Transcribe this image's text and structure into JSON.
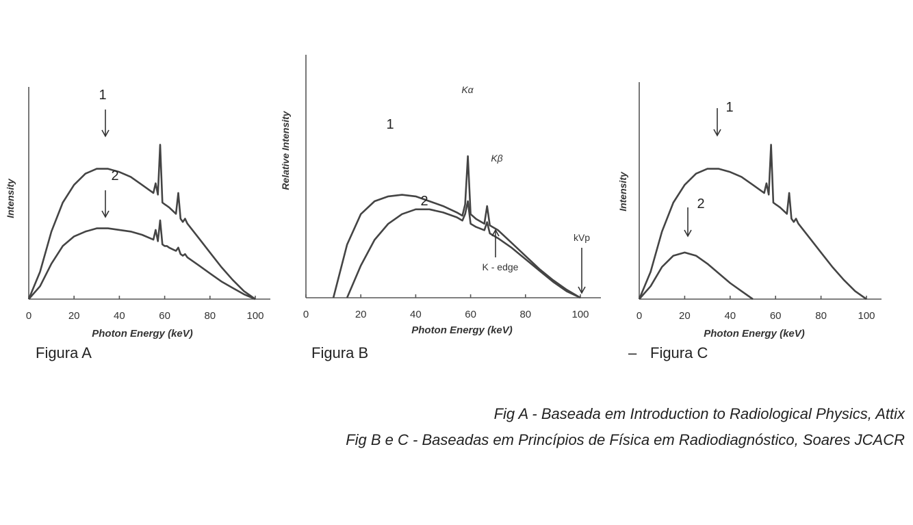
{
  "chart_data": [
    {
      "type": "line",
      "caption": "Figura A",
      "xlabel": "Photon Energy (keV)",
      "ylabel": "Intensity",
      "xticks": [
        0,
        20,
        40,
        60,
        80,
        100
      ],
      "xlim": [
        0,
        100
      ],
      "ylim": [
        0,
        1
      ],
      "series": [
        {
          "name": "1",
          "x": [
            0,
            5,
            10,
            15,
            20,
            25,
            30,
            35,
            40,
            45,
            50,
            55,
            56,
            57,
            58,
            59,
            60,
            61,
            62,
            65,
            66,
            67,
            68,
            69,
            70,
            75,
            80,
            85,
            90,
            95,
            100
          ],
          "y": [
            0,
            0.17,
            0.42,
            0.6,
            0.71,
            0.78,
            0.81,
            0.81,
            0.79,
            0.76,
            0.71,
            0.66,
            0.72,
            0.65,
            0.96,
            0.6,
            0.59,
            0.58,
            0.57,
            0.53,
            0.66,
            0.5,
            0.48,
            0.5,
            0.47,
            0.38,
            0.29,
            0.2,
            0.12,
            0.05,
            0
          ]
        },
        {
          "name": "2",
          "x": [
            0,
            5,
            10,
            15,
            20,
            25,
            30,
            35,
            40,
            45,
            50,
            55,
            56,
            57,
            58,
            59,
            60,
            61,
            62,
            65,
            66,
            67,
            68,
            69,
            70,
            75,
            80,
            85,
            90,
            95,
            100
          ],
          "y": [
            0,
            0.08,
            0.22,
            0.33,
            0.39,
            0.42,
            0.44,
            0.44,
            0.43,
            0.42,
            0.4,
            0.37,
            0.43,
            0.36,
            0.49,
            0.34,
            0.33,
            0.33,
            0.32,
            0.3,
            0.32,
            0.28,
            0.27,
            0.28,
            0.26,
            0.21,
            0.16,
            0.11,
            0.07,
            0.03,
            0
          ]
        }
      ]
    },
    {
      "type": "line",
      "caption": "Figura B",
      "xlabel": "Photon Energy (keV)",
      "ylabel": "Relative Intensity",
      "xticks": [
        0,
        20,
        40,
        60,
        80,
        100
      ],
      "xlim": [
        0,
        100
      ],
      "ylim": [
        0,
        1
      ],
      "annotations": [
        "Kα",
        "Kβ",
        "K - edge",
        "kVp"
      ],
      "series": [
        {
          "name": "1",
          "x": [
            10,
            15,
            20,
            25,
            30,
            35,
            40,
            45,
            50,
            55,
            57,
            58,
            59,
            60,
            62,
            65,
            66,
            67,
            68,
            70,
            75,
            80,
            85,
            90,
            95,
            100
          ],
          "y": [
            0,
            0.33,
            0.52,
            0.6,
            0.63,
            0.64,
            0.63,
            0.6,
            0.57,
            0.53,
            0.51,
            0.58,
            0.88,
            0.52,
            0.49,
            0.46,
            0.57,
            0.45,
            0.44,
            0.42,
            0.34,
            0.26,
            0.18,
            0.11,
            0.05,
            0
          ]
        },
        {
          "name": "2",
          "x": [
            15,
            20,
            25,
            30,
            35,
            40,
            45,
            50,
            55,
            57,
            58,
            59,
            60,
            62,
            65,
            66,
            67,
            68,
            70,
            75,
            80,
            85,
            90,
            95,
            100
          ],
          "y": [
            0,
            0.2,
            0.36,
            0.46,
            0.52,
            0.55,
            0.55,
            0.53,
            0.5,
            0.48,
            0.52,
            0.6,
            0.46,
            0.44,
            0.42,
            0.47,
            0.4,
            0.39,
            0.37,
            0.31,
            0.24,
            0.17,
            0.1,
            0.04,
            0
          ]
        }
      ]
    },
    {
      "type": "line",
      "caption": "Figura C",
      "xlabel": "Photon Energy (keV)",
      "ylabel": "Intensity",
      "xticks": [
        0,
        20,
        40,
        60,
        80,
        100
      ],
      "xlim": [
        0,
        100
      ],
      "ylim": [
        0,
        1
      ],
      "series": [
        {
          "name": "1",
          "x": [
            0,
            5,
            10,
            15,
            20,
            25,
            30,
            35,
            40,
            45,
            50,
            55,
            56,
            57,
            58,
            59,
            60,
            61,
            62,
            65,
            66,
            67,
            68,
            69,
            70,
            75,
            80,
            85,
            90,
            95,
            100
          ],
          "y": [
            0,
            0.17,
            0.42,
            0.6,
            0.71,
            0.78,
            0.81,
            0.81,
            0.79,
            0.76,
            0.71,
            0.66,
            0.72,
            0.65,
            0.96,
            0.6,
            0.59,
            0.58,
            0.57,
            0.53,
            0.66,
            0.5,
            0.48,
            0.5,
            0.47,
            0.38,
            0.29,
            0.2,
            0.12,
            0.05,
            0
          ]
        },
        {
          "name": "2",
          "x": [
            0,
            5,
            10,
            15,
            20,
            25,
            30,
            35,
            40,
            45,
            50
          ],
          "y": [
            0,
            0.08,
            0.2,
            0.27,
            0.29,
            0.27,
            0.22,
            0.16,
            0.1,
            0.05,
            0
          ]
        }
      ]
    }
  ],
  "dash": "–",
  "footnotes": [
    "Fig A - Baseada em Introduction to Radiological Physics, Attix",
    "Fig B e C - Baseadas em Princípios de Física em Radiodiagnóstico, Soares JCACR"
  ]
}
